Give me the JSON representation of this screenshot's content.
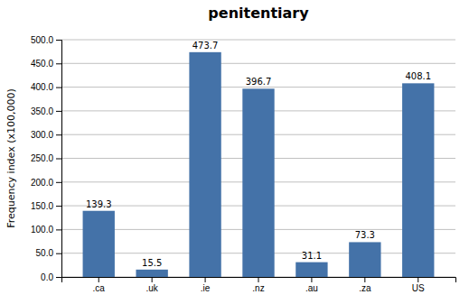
{
  "chart_data": {
    "type": "bar",
    "title": "penitentiary",
    "categories": [
      ".ca",
      ".uk",
      ".ie",
      ".nz",
      ".au",
      ".za",
      "US"
    ],
    "values": [
      139.3,
      15.5,
      473.7,
      396.7,
      31.1,
      73.3,
      408.1
    ],
    "color": "#4472a8",
    "ylabel": "Frequency index (x100,000)",
    "ylim": [
      0,
      500
    ],
    "yticks": [
      {
        "value": 0,
        "label": "0.0"
      },
      {
        "value": 50,
        "label": "50.0"
      },
      {
        "value": 100,
        "label": "100.0"
      },
      {
        "value": 150,
        "label": "150.0"
      },
      {
        "value": 200,
        "label": "200.0"
      },
      {
        "value": 250,
        "label": "250.0"
      },
      {
        "value": 300,
        "label": "300.0"
      },
      {
        "value": 350,
        "label": "350.0"
      },
      {
        "value": 400,
        "label": "400.0"
      },
      {
        "value": 450,
        "label": "450.0"
      },
      {
        "value": 500,
        "label": "500.0"
      }
    ],
    "grid": true,
    "data_labels": true
  }
}
